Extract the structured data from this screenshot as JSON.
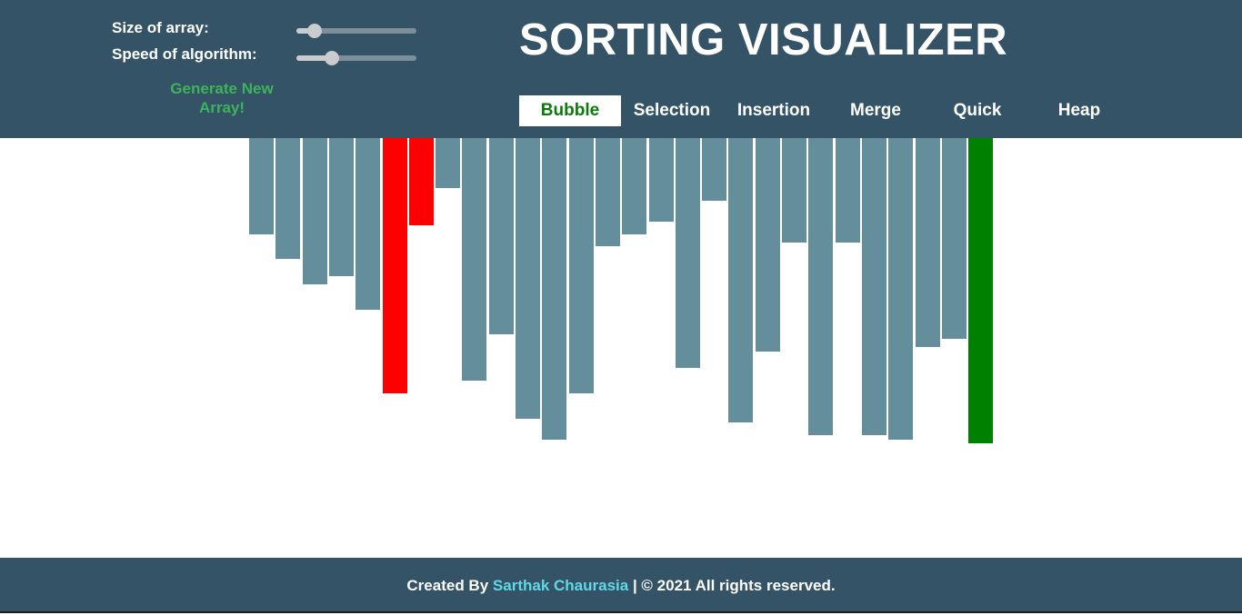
{
  "controls": {
    "size_label": "Size of array:",
    "speed_label": "Speed of algorithm:",
    "size_value": 0.1,
    "speed_value": 0.27,
    "generate_label": "Generate New Array!"
  },
  "title": "SORTING VISUALIZER",
  "algorithms": [
    {
      "label": "Bubble",
      "active": true
    },
    {
      "label": "Selection",
      "active": false
    },
    {
      "label": "Insertion",
      "active": false
    },
    {
      "label": "Merge",
      "active": false
    },
    {
      "label": "Quick",
      "active": false
    },
    {
      "label": "Heap",
      "active": false
    }
  ],
  "array": {
    "values": [
      106,
      133,
      161,
      152,
      189,
      281,
      96,
      55,
      267,
      216,
      309,
      332,
      281,
      119,
      106,
      92,
      253,
      69,
      313,
      235,
      115,
      327,
      115,
      327,
      332,
      230,
      221,
      336
    ],
    "states": [
      "default",
      "default",
      "default",
      "default",
      "default",
      "compare",
      "compare",
      "default",
      "default",
      "default",
      "default",
      "default",
      "default",
      "default",
      "default",
      "default",
      "default",
      "default",
      "default",
      "default",
      "default",
      "default",
      "default",
      "default",
      "default",
      "default",
      "default",
      "sorted"
    ],
    "colors": {
      "default": "#648e9c",
      "compare": "#ff0000",
      "sorted": "#008000"
    }
  },
  "footer": {
    "prefix": "Created By",
    "author": "Sarthak Chaurasia",
    "suffix": "| © 2021 All rights reserved."
  }
}
